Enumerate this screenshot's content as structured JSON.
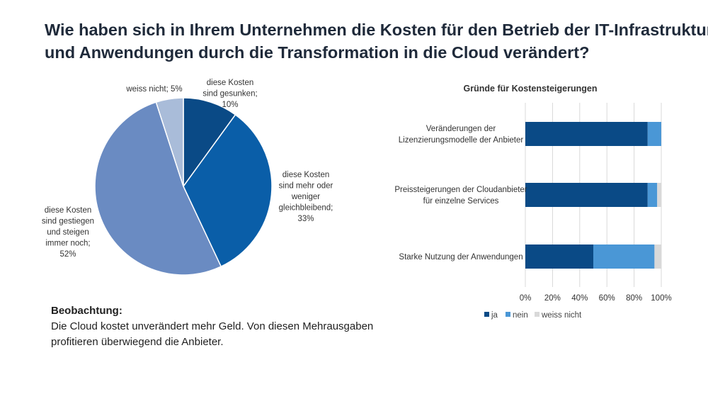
{
  "title": {
    "line1": "Wie haben sich in Ihrem Unternehmen die Kosten für den Betrieb der IT-Infrastruktur",
    "line2": "und Anwendungen durch die Transformation in die Cloud verändert?"
  },
  "observation": {
    "heading": "Beobachtung:",
    "line1": "Die Cloud kostet unverändert mehr Geld. Von diesen Mehrausgaben",
    "line2": "profitieren überwiegend die Anbieter."
  },
  "chart_data": [
    {
      "type": "pie",
      "title": "",
      "slices": [
        {
          "label_lines": [
            "diese Kosten",
            "sind gesunken;",
            "10%"
          ],
          "value": 10,
          "color": "#0a4a86"
        },
        {
          "label_lines": [
            "diese Kosten",
            "sind mehr oder",
            "weniger",
            "gleichbleibend;",
            "33%"
          ],
          "value": 33,
          "color": "#0a5ea8"
        },
        {
          "label_lines": [
            "diese Kosten",
            "sind gestiegen",
            "und steigen",
            "immer noch;",
            "52%"
          ],
          "value": 52,
          "color": "#6a8bc2"
        },
        {
          "label_lines": [
            "weiss nicht; 5%"
          ],
          "value": 5,
          "color": "#a9bcd9"
        }
      ]
    },
    {
      "type": "bar",
      "orientation": "horizontal",
      "stacked": true,
      "title": "Gründe für Kostensteigerungen",
      "categories": [
        {
          "lines": [
            "Veränderungen der",
            "Lizenzierungsmodelle der Anbieter"
          ]
        },
        {
          "lines": [
            "Preissteigerungen der Cloudanbieter",
            "für einzelne Services"
          ]
        },
        {
          "lines": [
            "Starke Nutzung der Anwendungen"
          ]
        }
      ],
      "series": [
        {
          "name": "ja",
          "color": "#0a4a86",
          "values": [
            90,
            90,
            50
          ]
        },
        {
          "name": "nein",
          "color": "#4a97d6",
          "values": [
            10,
            7,
            45
          ]
        },
        {
          "name": "weiss nicht",
          "color": "#d9d9d9",
          "values": [
            0,
            3,
            5
          ]
        }
      ],
      "xlim": [
        0,
        100
      ],
      "xticks": [
        "0%",
        "20%",
        "40%",
        "60%",
        "80%",
        "100%"
      ],
      "grid": true,
      "legend": "bottom"
    }
  ]
}
